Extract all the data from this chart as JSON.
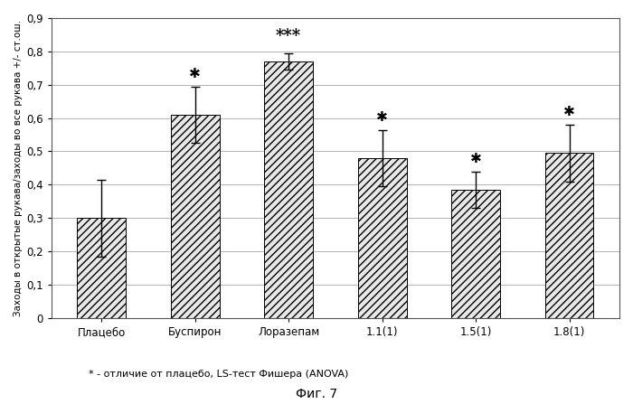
{
  "categories": [
    "Плацебо",
    "Буспирон",
    "Лоразепам",
    "1.1(1)",
    "1.5(1)",
    "1.8(1)"
  ],
  "values": [
    0.3,
    0.61,
    0.77,
    0.48,
    0.385,
    0.495
  ],
  "errors": [
    0.115,
    0.085,
    0.025,
    0.085,
    0.055,
    0.085
  ],
  "significance": [
    "",
    "*",
    "***",
    "*",
    "*",
    "*"
  ],
  "bar_facecolor": "#e8e8e8",
  "hatch": "////",
  "ylim": [
    0,
    0.9
  ],
  "yticks": [
    0,
    0.1,
    0.2,
    0.3,
    0.4,
    0.5,
    0.6,
    0.7,
    0.8,
    0.9
  ],
  "ylabel": "Заходы в открытые рукава/заходы во все рукава +/- ст.ош.",
  "footnote": "* - отличие от плацебо, LS-тест Фишера (ANOVA)",
  "figure_label": "Фиг. 7",
  "background_color": "#ffffff",
  "grid_color": "#aaaaaa",
  "border_color": "#555555"
}
